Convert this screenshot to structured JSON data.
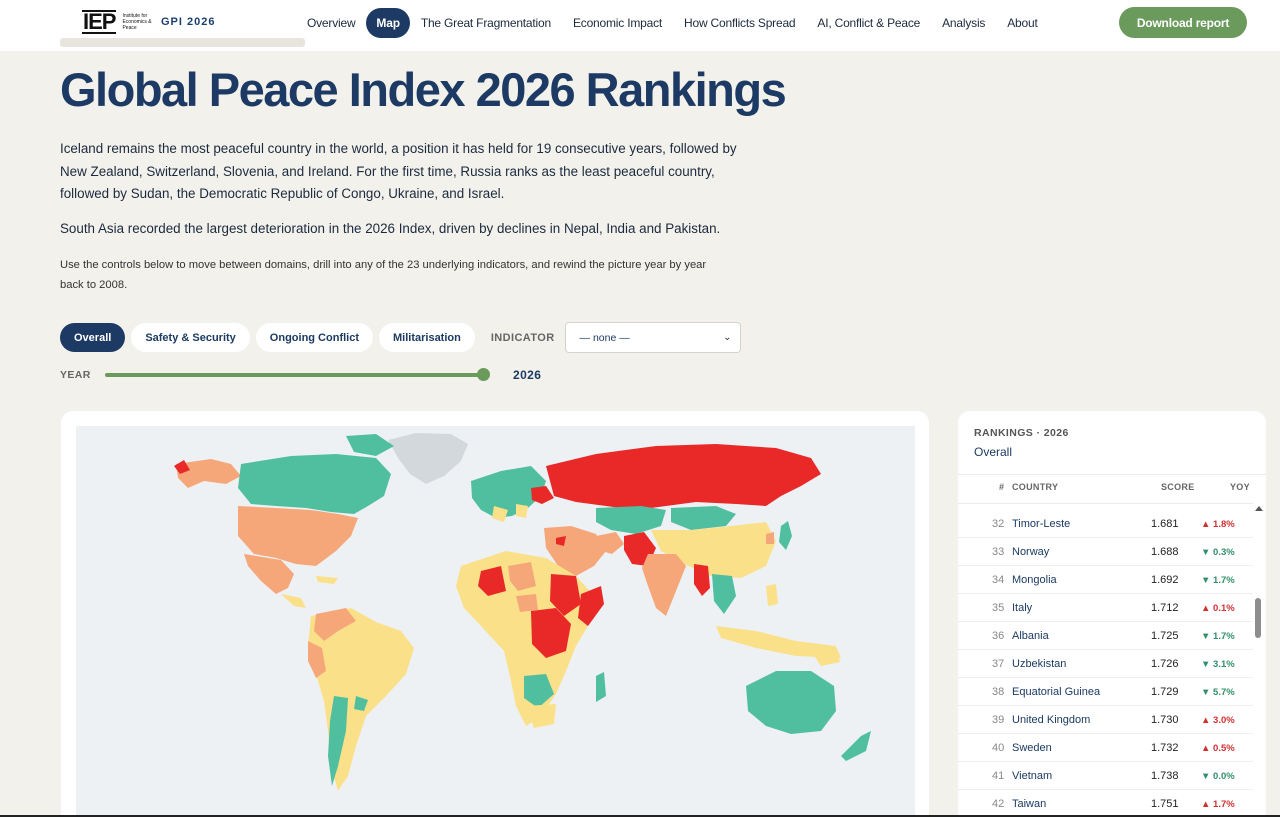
{
  "nav": {
    "logo_mark": "IEP",
    "logo_sub": "Institute for Economics & Peace",
    "product": "GPI 2026",
    "links": [
      {
        "label": "Overview",
        "active": false
      },
      {
        "label": "Map",
        "active": true
      },
      {
        "label": "The Great Fragmentation",
        "active": false
      },
      {
        "label": "Economic Impact",
        "active": false
      },
      {
        "label": "How Conflicts Spread",
        "active": false
      },
      {
        "label": "AI, Conflict & Peace",
        "active": false
      },
      {
        "label": "Analysis",
        "active": false
      },
      {
        "label": "About",
        "active": false
      }
    ],
    "download_label": "Download report"
  },
  "page": {
    "title": "Global Peace Index 2026 Rankings",
    "lead": "Iceland remains the most peaceful country in the world, a position it has held for 19 consecutive years, followed by New Zealand, Switzerland, Slovenia, and Ireland. For the first time, Russia ranks as the least peaceful country, followed by Sudan, the Democratic Republic of Congo, Ukraine, and Israel.",
    "lead2": "South Asia recorded the largest deterioration in the 2026 Index, driven by declines in Nepal, India and Pakistan.",
    "hint": "Use the controls below to move between domains, drill into any of the 23 underlying indicators, and rewind the picture year by year back to 2008."
  },
  "controls": {
    "domains": [
      {
        "label": "Overall",
        "active": true
      },
      {
        "label": "Safety & Security",
        "active": false
      },
      {
        "label": "Ongoing Conflict",
        "active": false
      },
      {
        "label": "Militarisation",
        "active": false
      }
    ],
    "indicator_label": "INDICATOR",
    "indicator_value": "— none —",
    "year_label": "YEAR",
    "year_value": "2026",
    "year_position": 1.0
  },
  "rankings": {
    "title": "RANKINGS · 2026",
    "subtitle": "Overall",
    "headers": {
      "num": "#",
      "country": "COUNTRY",
      "score": "SCORE",
      "yoy": "YOY"
    },
    "rows": [
      {
        "rank": "32",
        "country": "Timor-Leste",
        "score": "1.681",
        "dir": "up",
        "yoy": "1.8%"
      },
      {
        "rank": "33",
        "country": "Norway",
        "score": "1.688",
        "dir": "down",
        "yoy": "0.3%"
      },
      {
        "rank": "34",
        "country": "Mongolia",
        "score": "1.692",
        "dir": "down",
        "yoy": "1.7%"
      },
      {
        "rank": "35",
        "country": "Italy",
        "score": "1.712",
        "dir": "up",
        "yoy": "0.1%"
      },
      {
        "rank": "36",
        "country": "Albania",
        "score": "1.725",
        "dir": "down",
        "yoy": "1.7%"
      },
      {
        "rank": "37",
        "country": "Uzbekistan",
        "score": "1.726",
        "dir": "down",
        "yoy": "3.1%"
      },
      {
        "rank": "38",
        "country": "Equatorial Guinea",
        "score": "1.729",
        "dir": "down",
        "yoy": "5.7%"
      },
      {
        "rank": "39",
        "country": "United Kingdom",
        "score": "1.730",
        "dir": "up",
        "yoy": "3.0%"
      },
      {
        "rank": "40",
        "country": "Sweden",
        "score": "1.732",
        "dir": "up",
        "yoy": "0.5%"
      },
      {
        "rank": "41",
        "country": "Vietnam",
        "score": "1.738",
        "dir": "down",
        "yoy": "0.0%"
      },
      {
        "rank": "42",
        "country": "Taiwan",
        "score": "1.751",
        "dir": "up",
        "yoy": "1.7%"
      }
    ]
  },
  "colors": {
    "very_high": "#4fbf9f",
    "high": "#fbe08a",
    "medium": "#f5a77a",
    "low": "#e92828",
    "no_data": "#d3d8dc",
    "accent": "#1c3a63",
    "green": "#6a9a5c"
  }
}
